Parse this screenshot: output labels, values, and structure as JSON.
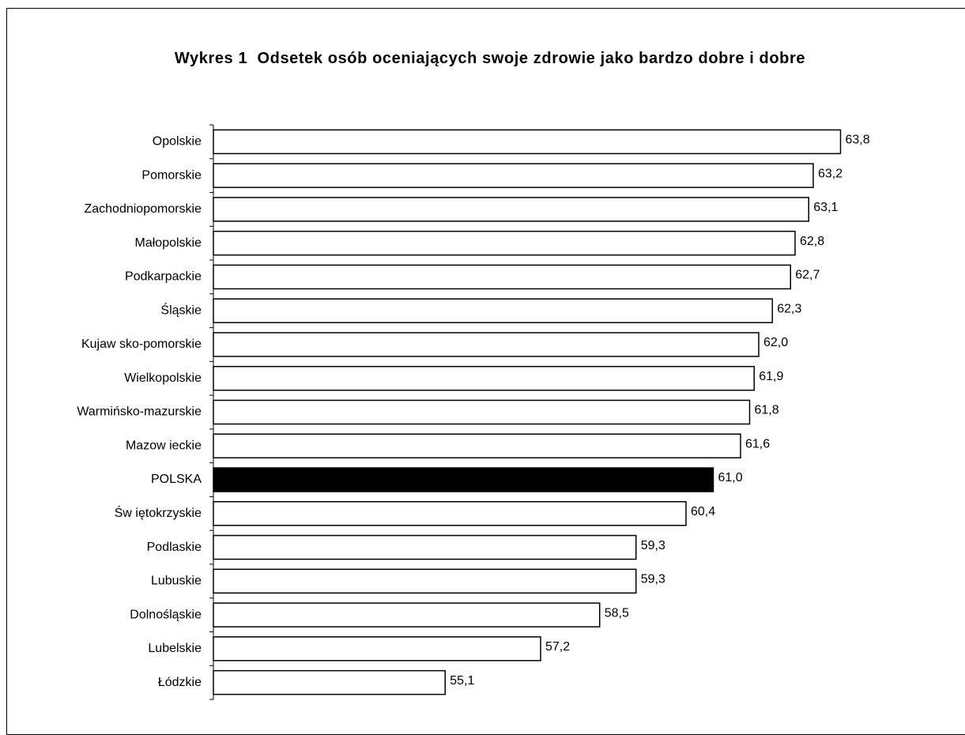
{
  "chart_data": {
    "type": "barh",
    "title": "Wykres 1  Odsetek osób oceniających swoje zdrowie jako bardzo dobre i dobre",
    "categories": [
      "Opolskie",
      "Pomorskie",
      "Zachodniopomorskie",
      "Małopolskie",
      "Podkarpackie",
      "Śląskie",
      "Kujaw sko-pomorskie",
      "Wielkopolskie",
      "Warmińsko-mazurskie",
      "Mazow ieckie",
      "POLSKA",
      "Św iętokrzyskie",
      "Podlaskie",
      "Lubuskie",
      "Dolnośląskie",
      "Lubelskie",
      "Łódzkie"
    ],
    "values": [
      63.8,
      63.2,
      63.1,
      62.8,
      62.7,
      62.3,
      62.0,
      61.9,
      61.8,
      61.6,
      61.0,
      60.4,
      59.3,
      59.3,
      58.5,
      57.2,
      55.1
    ],
    "value_labels": [
      "63,8",
      "63,2",
      "63,1",
      "62,8",
      "62,7",
      "62,3",
      "62,0",
      "61,9",
      "61,8",
      "61,6",
      "61,0",
      "60,4",
      "59,3",
      "59,3",
      "58,5",
      "57,2",
      "55,1"
    ],
    "colors": [
      "#ffffff",
      "#ffffff",
      "#ffffff",
      "#ffffff",
      "#ffffff",
      "#ffffff",
      "#ffffff",
      "#ffffff",
      "#ffffff",
      "#ffffff",
      "#000000",
      "#ffffff",
      "#ffffff",
      "#ffffff",
      "#ffffff",
      "#ffffff",
      "#ffffff"
    ],
    "xlim": [
      50,
      65
    ]
  }
}
